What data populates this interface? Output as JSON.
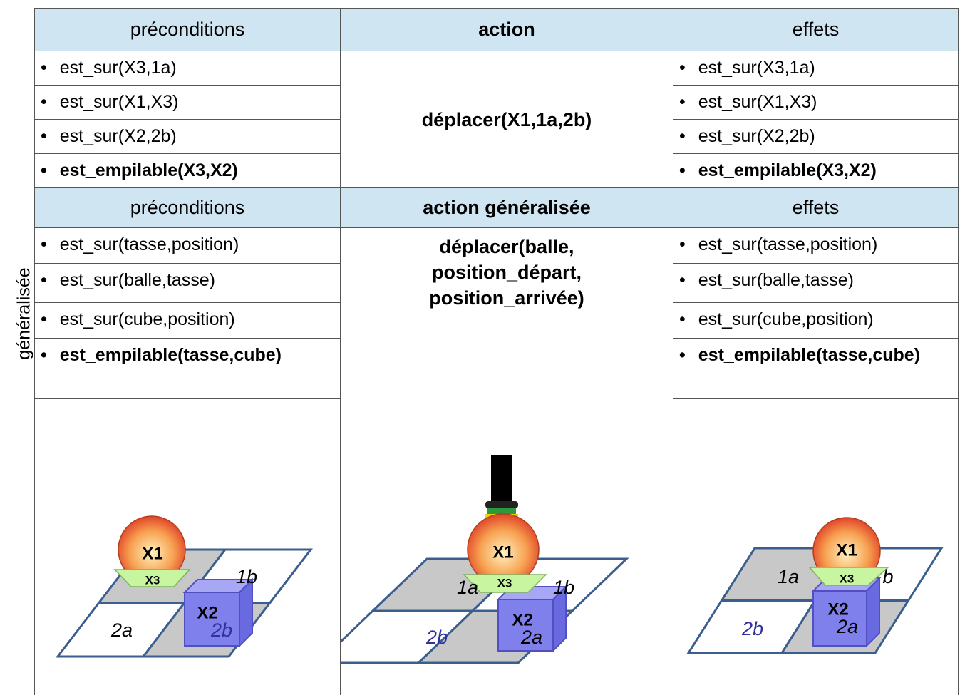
{
  "side_label": "généralisée",
  "table": {
    "header": [
      "préconditions",
      "action",
      "effets"
    ],
    "preconditions": [
      "est_sur(X3,1a)",
      "est_sur(X1,X3)",
      "est_sur(X2,2b)",
      "est_empilable(X3,X2)"
    ],
    "action": "déplacer(X1,1a,2b)",
    "effects": [
      "est_sur(X3,1a)",
      "est_sur(X1,X3)",
      "est_sur(X2,2b)",
      "est_empilable(X3,X2)"
    ],
    "header_generalized": [
      "préconditions",
      "action généralisée",
      "effets"
    ],
    "generalized_preconditions": [
      "est_sur(tasse,position)",
      "est_sur(balle,tasse)",
      "est_sur(cube,position)",
      "est_empilable(tasse,cube)"
    ],
    "generalized_action": [
      "déplacer(balle,",
      "position_départ,",
      "position_arrivée)"
    ],
    "generalized_effects": [
      "est_sur(tasse,position)",
      "est_sur(balle,tasse)",
      "est_sur(cube,position)",
      "est_empilable(tasse,cube)"
    ]
  },
  "scenes": [
    {
      "labels": [
        "X1",
        "X3",
        "1b",
        "X2",
        "2a",
        "2b"
      ]
    },
    {
      "labels": [
        "X1",
        "X3",
        "1a",
        "1b",
        "X2",
        "2a",
        "2b"
      ]
    },
    {
      "labels": [
        "X1",
        "X3",
        "1a",
        "b",
        "X2",
        "2a",
        "2b"
      ]
    }
  ]
}
